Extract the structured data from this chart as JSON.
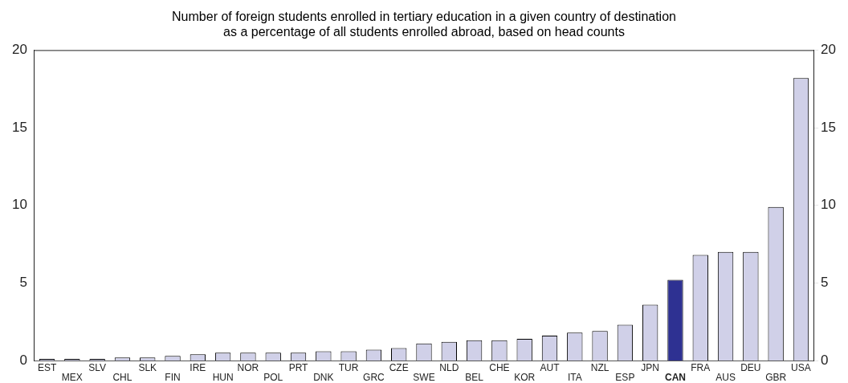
{
  "chart_data": {
    "type": "bar",
    "title": "Number of foreign students enrolled in tertiary education in a given country of destination\nas a percentage of all students enrolled abroad, based on head counts",
    "categories": [
      "EST",
      "MEX",
      "SLV",
      "CHL",
      "SLK",
      "FIN",
      "IRE",
      "HUN",
      "NOR",
      "POL",
      "PRT",
      "DNK",
      "TUR",
      "GRC",
      "CZE",
      "SWE",
      "NLD",
      "BEL",
      "CHE",
      "KOR",
      "AUT",
      "ITA",
      "NZL",
      "ESP",
      "JPN",
      "CAN",
      "FRA",
      "AUS",
      "DEU",
      "GBR",
      "USA"
    ],
    "values": [
      0.1,
      0.1,
      0.1,
      0.2,
      0.2,
      0.3,
      0.4,
      0.5,
      0.5,
      0.5,
      0.5,
      0.6,
      0.6,
      0.7,
      0.8,
      1.1,
      1.2,
      1.3,
      1.3,
      1.4,
      1.6,
      1.8,
      1.9,
      2.3,
      3.6,
      5.2,
      6.8,
      7.0,
      7.0,
      9.9,
      18.2
    ],
    "colors": [
      "#d0d0e8",
      "#d0d0e8",
      "#d0d0e8",
      "#d0d0e8",
      "#d0d0e8",
      "#d0d0e8",
      "#d0d0e8",
      "#d0d0e8",
      "#d0d0e8",
      "#d0d0e8",
      "#d0d0e8",
      "#d0d0e8",
      "#d0d0e8",
      "#d0d0e8",
      "#d0d0e8",
      "#d0d0e8",
      "#d0d0e8",
      "#d0d0e8",
      "#d0d0e8",
      "#d0d0e8",
      "#d0d0e8",
      "#d0d0e8",
      "#d0d0e8",
      "#d0d0e8",
      "#d0d0e8",
      "#2e3192",
      "#d0d0e8",
      "#d0d0e8",
      "#d0d0e8",
      "#d0d0e8",
      "#d0d0e8"
    ],
    "ylim": [
      0,
      20
    ],
    "yticks": [
      0,
      5,
      10,
      15,
      20
    ],
    "y2lim": [
      0,
      20
    ],
    "y2ticks": [
      0,
      5,
      10,
      15,
      20
    ],
    "grid": false,
    "legend": false
  }
}
